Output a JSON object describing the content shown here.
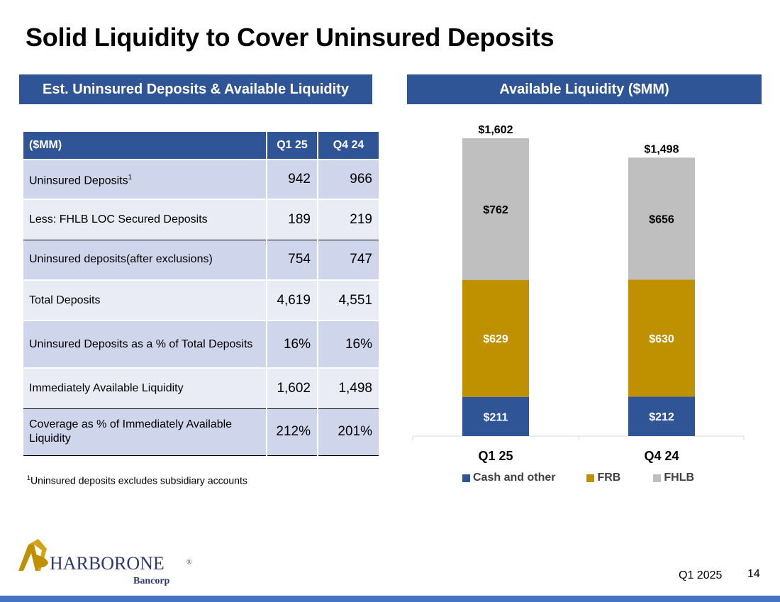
{
  "title": "Solid Liquidity to Cover Uninsured Deposits",
  "left_header": "Est. Uninsured Deposits & Available Liquidity",
  "right_header": "Available Liquidity ($MM)",
  "table": {
    "headers": [
      "($MM)",
      "Q1 25",
      "Q4 24"
    ],
    "rows": [
      {
        "label": "Uninsured Deposits",
        "sup": "1",
        "q1": "942",
        "q4": "966"
      },
      {
        "label": "Less: FHLB LOC Secured Deposits",
        "sup": "",
        "q1": "189",
        "q4": "219"
      },
      {
        "label": "Uninsured deposits(after exclusions)",
        "sup": "",
        "q1": "754",
        "q4": "747"
      },
      {
        "label": "Total Deposits",
        "sup": "",
        "q1": "4,619",
        "q4": "4,551"
      },
      {
        "label": "Uninsured Deposits as a % of Total Deposits",
        "sup": "",
        "q1": "16%",
        "q4": "16%"
      },
      {
        "label": "Immediately Available Liquidity",
        "sup": "",
        "q1": "1,602",
        "q4": "1,498"
      },
      {
        "label": "Coverage as % of Immediately Available Liquidity",
        "sup": "",
        "q1": "212%",
        "q4": "201%"
      }
    ]
  },
  "footnote": {
    "sup": "1",
    "text": "Uninsured deposits excludes subsidiary accounts"
  },
  "chart_data": {
    "type": "bar",
    "stacked": true,
    "categories": [
      "Q1 25",
      "Q4 24"
    ],
    "series": [
      {
        "name": "Cash and other",
        "values": [
          211,
          212
        ],
        "labels": [
          "$211",
          "$212"
        ],
        "color": "#2F5597",
        "label_color": "#ffffff"
      },
      {
        "name": "FRB",
        "values": [
          629,
          630
        ],
        "labels": [
          "$629",
          "$630"
        ],
        "color": "#BF9000",
        "label_color": "#ffffff"
      },
      {
        "name": "FHLB",
        "values": [
          762,
          656
        ],
        "labels": [
          "$762",
          "$656"
        ],
        "color": "#BFBFBF",
        "label_color": "#000000"
      }
    ],
    "totals": [
      "$1,602",
      "$1,498"
    ],
    "legend_position": "bottom",
    "grid": false
  },
  "logo": {
    "name": "HARBORONE",
    "sub": "Bancorp",
    "mark": "®"
  },
  "footer": {
    "period": "Q1 2025",
    "page": "14"
  },
  "colors": {
    "header_blue": "#2F5597",
    "bar_accent": "#4472C4",
    "gold": "#BF9000"
  }
}
